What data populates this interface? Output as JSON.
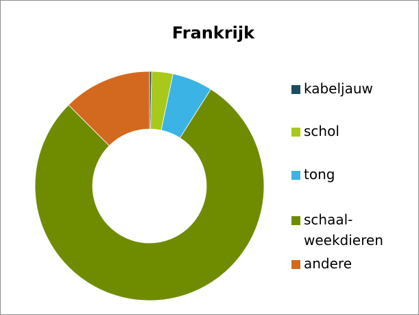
{
  "chart_data": {
    "type": "donut",
    "title": "Frankrijk",
    "categories": [
      "kabeljauw",
      "schol",
      "tong",
      "schaal-\nweekdieren",
      "andere"
    ],
    "values": [
      0.3,
      3,
      5.7,
      78.5,
      12.5
    ],
    "colors": [
      "#1d4e5f",
      "#a8c81c",
      "#3bb4e5",
      "#6f8c00",
      "#d2691f"
    ],
    "legend": "right"
  }
}
